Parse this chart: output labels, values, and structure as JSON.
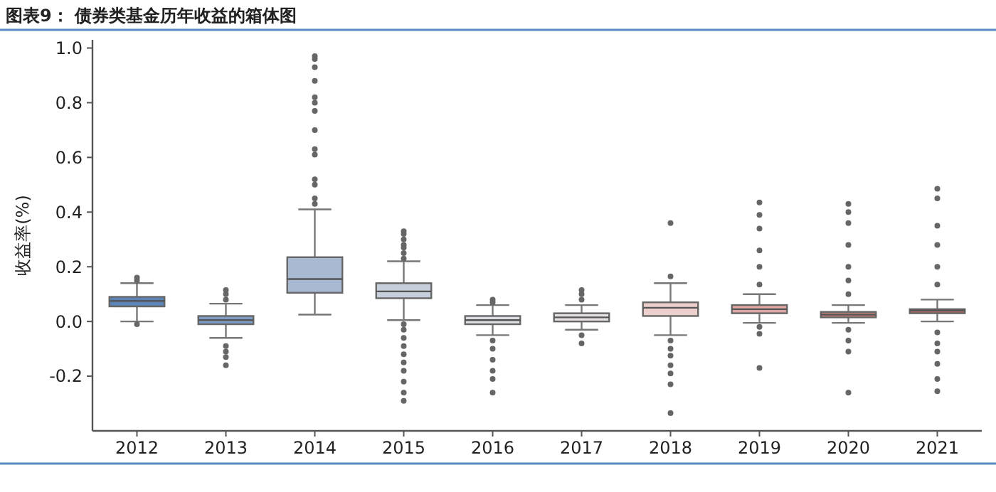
{
  "chart_data": {
    "type": "box",
    "title": "图表9： 债券类基金历年收益的箱体图",
    "ylabel": "收益率(%)",
    "categories": [
      "2012",
      "2013",
      "2014",
      "2015",
      "2016",
      "2017",
      "2018",
      "2019",
      "2020",
      "2021"
    ],
    "colors": [
      "#5b85b8",
      "#7f9dc4",
      "#a9b9d2",
      "#c5ceda",
      "#dcdfe4",
      "#e6e2e1",
      "#edcfcd",
      "#dfa7a3",
      "#c9827e",
      "#b46a68"
    ],
    "boxes": [
      {
        "low": 0.0,
        "q1": 0.055,
        "median": 0.075,
        "q3": 0.09,
        "high": 0.14,
        "outliers": [
          0.15,
          0.16,
          -0.01
        ]
      },
      {
        "low": -0.06,
        "q1": -0.01,
        "median": 0.005,
        "q3": 0.02,
        "high": 0.065,
        "outliers": [
          0.08,
          0.1,
          0.115,
          -0.09,
          -0.11,
          -0.13,
          -0.16
        ]
      },
      {
        "low": 0.025,
        "q1": 0.105,
        "median": 0.155,
        "q3": 0.235,
        "high": 0.41,
        "outliers": [
          0.43,
          0.45,
          0.5,
          0.52,
          0.61,
          0.63,
          0.7,
          0.77,
          0.8,
          0.82,
          0.88,
          0.93,
          0.96,
          0.97
        ]
      },
      {
        "low": 0.005,
        "q1": 0.085,
        "median": 0.11,
        "q3": 0.14,
        "high": 0.22,
        "outliers": [
          0.23,
          0.25,
          0.27,
          0.28,
          0.3,
          0.32,
          0.33,
          -0.01,
          -0.03,
          -0.06,
          -0.09,
          -0.12,
          -0.15,
          -0.18,
          -0.22,
          -0.26,
          -0.29
        ]
      },
      {
        "low": -0.05,
        "q1": -0.01,
        "median": 0.005,
        "q3": 0.02,
        "high": 0.06,
        "outliers": [
          0.07,
          0.08,
          -0.07,
          -0.1,
          -0.14,
          -0.18,
          -0.21,
          -0.26
        ]
      },
      {
        "low": -0.03,
        "q1": 0.0,
        "median": 0.015,
        "q3": 0.03,
        "high": 0.06,
        "outliers": [
          0.08,
          0.1,
          0.115,
          -0.05,
          -0.08
        ]
      },
      {
        "low": -0.05,
        "q1": 0.02,
        "median": 0.05,
        "q3": 0.07,
        "high": 0.14,
        "outliers": [
          0.165,
          0.36,
          -0.07,
          -0.1,
          -0.125,
          -0.16,
          -0.19,
          -0.23,
          -0.335
        ]
      },
      {
        "low": -0.005,
        "q1": 0.03,
        "median": 0.045,
        "q3": 0.06,
        "high": 0.1,
        "outliers": [
          0.135,
          0.2,
          0.26,
          0.34,
          0.39,
          0.435,
          -0.02,
          -0.045,
          -0.17
        ]
      },
      {
        "low": -0.005,
        "q1": 0.015,
        "median": 0.025,
        "q3": 0.035,
        "high": 0.06,
        "outliers": [
          0.1,
          0.15,
          0.2,
          0.28,
          0.36,
          0.4,
          0.43,
          -0.03,
          -0.07,
          -0.11,
          -0.26
        ]
      },
      {
        "low": 0.0,
        "q1": 0.03,
        "median": 0.04,
        "q3": 0.045,
        "high": 0.08,
        "outliers": [
          0.135,
          0.2,
          0.28,
          0.35,
          0.45,
          0.485,
          -0.04,
          -0.08,
          -0.11,
          -0.155,
          -0.21,
          -0.255
        ]
      }
    ],
    "ylim": [
      -0.4,
      1.03
    ],
    "yticks": [
      -0.2,
      {
        "value": 0,
        "label": "0.0"
      },
      0.2,
      0.4,
      0.6,
      0.8,
      {
        "value": 1,
        "label": "1.0"
      }
    ],
    "grid": false
  }
}
